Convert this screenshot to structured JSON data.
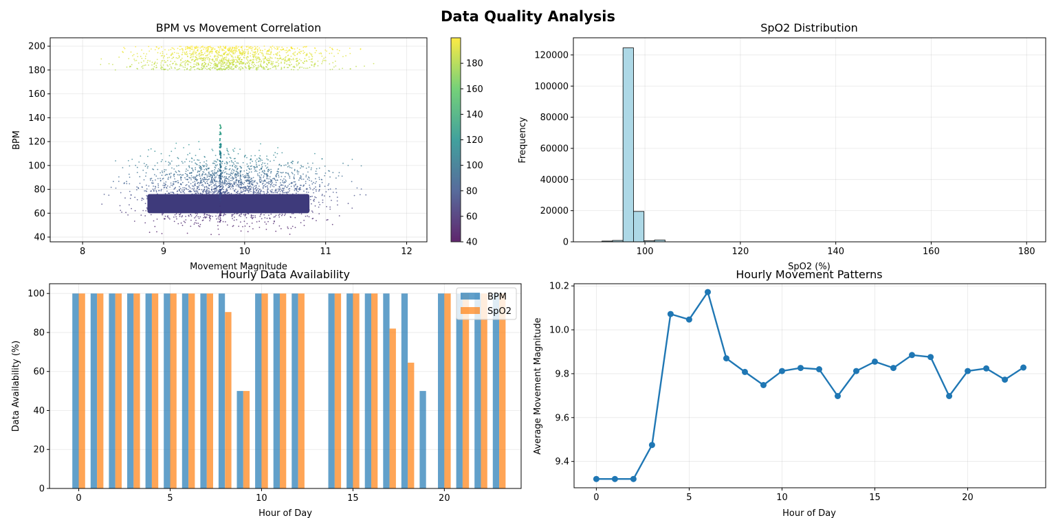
{
  "suptitle": "Data Quality Analysis",
  "chart_data": [
    {
      "type": "scatter",
      "title": "BPM vs Movement Correlation",
      "xlabel": "Movement Magnitude",
      "ylabel": "BPM",
      "xlim": [
        7.6,
        12.25
      ],
      "ylim": [
        36,
        207
      ],
      "xticks": [
        8,
        9,
        10,
        11,
        12
      ],
      "yticks": [
        40,
        60,
        80,
        100,
        120,
        140,
        160,
        180,
        200
      ],
      "grid": true,
      "colormap": "viridis",
      "colorbar": {
        "range": [
          40,
          200
        ],
        "ticks": [
          40,
          60,
          80,
          100,
          120,
          140,
          160,
          180
        ]
      },
      "clusters": [
        {
          "x_range": [
            7.7,
            12.0
          ],
          "y_range": [
            180,
            200
          ]
        },
        {
          "x_range": [
            7.7,
            12.0
          ],
          "y_range": [
            40,
            138
          ]
        }
      ],
      "dense_band": {
        "x_range": [
          8.8,
          10.8
        ],
        "y_range": [
          60,
          76
        ]
      },
      "dense_spike": {
        "x": 9.7,
        "y_range": [
          50,
          135
        ]
      }
    },
    {
      "type": "bar",
      "subtype": "histogram",
      "title": "SpO2 Distribution",
      "xlabel": "SpO2 (%)",
      "ylabel": "Frequency",
      "xlim": [
        85,
        184
      ],
      "ylim": [
        0,
        131000
      ],
      "xticks": [
        100,
        120,
        140,
        160,
        180
      ],
      "yticks": [
        0,
        20000,
        40000,
        60000,
        80000,
        100000,
        120000
      ],
      "grid": true,
      "bin_width": 2.2,
      "bins_start": 91,
      "counts": [
        500,
        900,
        124500,
        19500,
        600,
        1200,
        0,
        0,
        0,
        0,
        0,
        0,
        0,
        0,
        0,
        0,
        0,
        0,
        0,
        0,
        0,
        0,
        0,
        0,
        0,
        0,
        0,
        0,
        0,
        0,
        0,
        0,
        0,
        0,
        0,
        0,
        0,
        0,
        0,
        0,
        0
      ],
      "color": "#add8e6"
    },
    {
      "type": "bar",
      "title": "Hourly Data Availability",
      "xlabel": "Hour of Day",
      "ylabel": "Data Availability (%)",
      "xlim": [
        -1.6,
        24.2
      ],
      "ylim": [
        0,
        105
      ],
      "xticks": [
        0,
        5,
        10,
        15,
        20
      ],
      "yticks": [
        0,
        20,
        40,
        60,
        80,
        100
      ],
      "grid": true,
      "legend_position": "top-right",
      "categories": [
        0,
        1,
        2,
        3,
        4,
        5,
        6,
        7,
        8,
        9,
        10,
        11,
        12,
        13,
        14,
        15,
        16,
        17,
        18,
        19,
        20,
        21,
        22,
        23
      ],
      "series": [
        {
          "name": "BPM",
          "color": "#1f77b4",
          "values": [
            100,
            100,
            100,
            100,
            100,
            100,
            100,
            100,
            100,
            50,
            100,
            100,
            100,
            0,
            100,
            100,
            100,
            100,
            100,
            50,
            100,
            100,
            100,
            100
          ]
        },
        {
          "name": "SpO2",
          "color": "#ff7f0e",
          "values": [
            100,
            100,
            100,
            100,
            100,
            100,
            100,
            100,
            90.5,
            50,
            100,
            100,
            100,
            0,
            100,
            100,
            100,
            82,
            64.5,
            0,
            100,
            100,
            100,
            100
          ]
        }
      ]
    },
    {
      "type": "line",
      "title": "Hourly Movement Patterns",
      "xlabel": "Hour of Day",
      "ylabel": "Average Movement Magnitude",
      "xlim": [
        -1.2,
        24.2
      ],
      "ylim": [
        9.28,
        10.21
      ],
      "xticks": [
        0,
        5,
        10,
        15,
        20
      ],
      "yticks": [
        9.4,
        9.6,
        9.8,
        10.0,
        10.2
      ],
      "grid": true,
      "color": "#1f77b4",
      "x": [
        0,
        1,
        2,
        3,
        4,
        5,
        6,
        7,
        8,
        9,
        10,
        11,
        12,
        13,
        14,
        15,
        16,
        17,
        18,
        19,
        20,
        21,
        22,
        23
      ],
      "y": [
        9.32,
        9.32,
        9.32,
        9.475,
        10.072,
        10.047,
        10.172,
        9.87,
        9.808,
        9.748,
        9.812,
        9.826,
        9.82,
        9.698,
        9.812,
        9.855,
        9.826,
        9.885,
        9.876,
        9.698,
        9.812,
        9.824,
        9.773,
        9.828
      ]
    }
  ]
}
